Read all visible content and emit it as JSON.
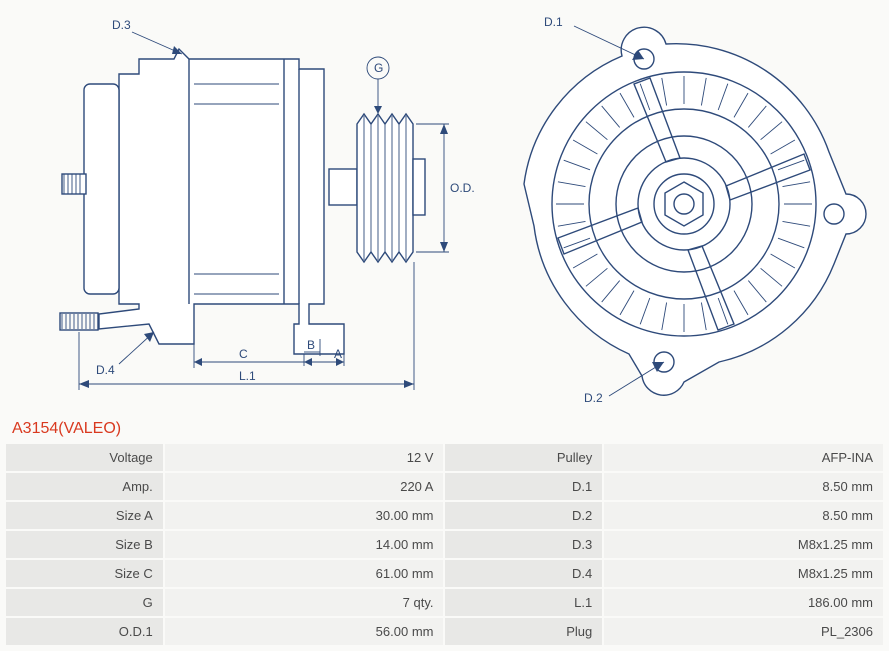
{
  "part_title": "A3154(VALEO)",
  "diagram": {
    "type": "engineering-drawing",
    "stroke_color": "#2e4a7a",
    "background": "#fafaf8",
    "labels_left": [
      "D.3",
      "G",
      "O.D.1",
      "A",
      "B",
      "C",
      "D.4",
      "L.1"
    ],
    "labels_right": [
      "D.1",
      "D.2"
    ]
  },
  "specs_left": [
    {
      "label": "Voltage",
      "value": "12 V"
    },
    {
      "label": "Amp.",
      "value": "220 A"
    },
    {
      "label": "Size A",
      "value": "30.00 mm"
    },
    {
      "label": "Size B",
      "value": "14.00 mm"
    },
    {
      "label": "Size C",
      "value": "61.00 mm"
    },
    {
      "label": "G",
      "value": "7 qty."
    },
    {
      "label": "O.D.1",
      "value": "56.00 mm"
    }
  ],
  "specs_right": [
    {
      "label": "Pulley",
      "value": "AFP-INA"
    },
    {
      "label": "D.1",
      "value": "8.50 mm"
    },
    {
      "label": "D.2",
      "value": "8.50 mm"
    },
    {
      "label": "D.3",
      "value": "M8x1.25 mm"
    },
    {
      "label": "D.4",
      "value": "M8x1.25 mm"
    },
    {
      "label": "L.1",
      "value": "186.00 mm"
    },
    {
      "label": "Plug",
      "value": "PL_2306"
    }
  ]
}
